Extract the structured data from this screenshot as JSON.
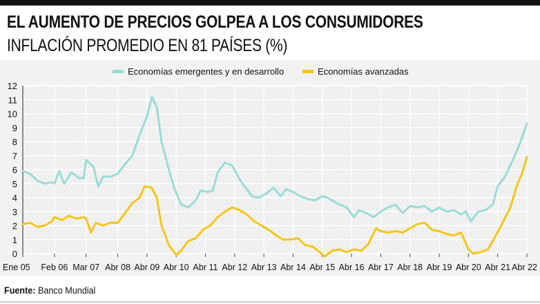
{
  "header": {
    "title": "EL AUMENTO DE PRECIOS GOLPEA A LOS CONSUMIDORES",
    "subtitle": "INFLACIÓN PROMEDIO EN 81 PAÍSES (%)"
  },
  "footer": {
    "source_label": "Fuente:",
    "source_text": "Banco Mundial"
  },
  "chart_data": {
    "type": "line",
    "title": "EL AUMENTO DE PRECIOS GOLPEA A LOS CONSUMIDORES",
    "subtitle": "INFLACIÓN PROMEDIO EN 81 PAÍSES (%)",
    "xlabel": "",
    "ylabel": "",
    "x_start": "2005-01",
    "x_end": "2022-04",
    "x_ticks": [
      {
        "label": "Ene 05",
        "date": "2005-01"
      },
      {
        "label": "Feb 06",
        "date": "2006-02"
      },
      {
        "label": "Mar 07",
        "date": "2007-03"
      },
      {
        "label": "Abr 08",
        "date": "2008-04"
      },
      {
        "label": "Abr 09",
        "date": "2009-04"
      },
      {
        "label": "Abr 10",
        "date": "2010-04"
      },
      {
        "label": "Abr 11",
        "date": "2011-04"
      },
      {
        "label": "Abr 12",
        "date": "2012-04"
      },
      {
        "label": "Abr 13",
        "date": "2013-04"
      },
      {
        "label": "Abr 14",
        "date": "2014-04"
      },
      {
        "label": "Abr 15",
        "date": "2015-04"
      },
      {
        "label": "Abr 16",
        "date": "2016-04"
      },
      {
        "label": "Abr 17",
        "date": "2017-04"
      },
      {
        "label": "Abr 18",
        "date": "2018-04"
      },
      {
        "label": "Abr 19",
        "date": "2019-04"
      },
      {
        "label": "Abr 20",
        "date": "2020-04"
      },
      {
        "label": "Abr 21",
        "date": "2021-04"
      },
      {
        "label": "Abr 22",
        "date": "2022-04"
      }
    ],
    "yticks": [
      0,
      1,
      2,
      3,
      4,
      5,
      6,
      7,
      8,
      9,
      10,
      11,
      12
    ],
    "ylim": [
      0,
      12
    ],
    "grid": true,
    "legend_position": "top-center",
    "series": [
      {
        "name": "Economías emergentes y en desarrollo",
        "color": "#9adbd8",
        "points": [
          [
            "2005-01",
            5.9
          ],
          [
            "2005-04",
            5.7
          ],
          [
            "2005-07",
            5.2
          ],
          [
            "2005-10",
            5.0
          ],
          [
            "2006-01",
            5.1
          ],
          [
            "2006-02",
            5.0
          ],
          [
            "2006-04",
            5.9
          ],
          [
            "2006-06",
            5.0
          ],
          [
            "2006-09",
            5.8
          ],
          [
            "2006-12",
            5.4
          ],
          [
            "2007-02",
            5.4
          ],
          [
            "2007-03",
            6.7
          ],
          [
            "2007-06",
            6.2
          ],
          [
            "2007-08",
            4.8
          ],
          [
            "2007-10",
            5.5
          ],
          [
            "2008-01",
            5.5
          ],
          [
            "2008-04",
            5.7
          ],
          [
            "2008-07",
            6.4
          ],
          [
            "2008-10",
            7.0
          ],
          [
            "2009-01",
            8.5
          ],
          [
            "2009-04",
            9.8
          ],
          [
            "2009-06",
            11.2
          ],
          [
            "2009-08",
            10.5
          ],
          [
            "2009-10",
            8.0
          ],
          [
            "2010-01",
            6.0
          ],
          [
            "2010-03",
            4.8
          ],
          [
            "2010-06",
            3.5
          ],
          [
            "2010-09",
            3.3
          ],
          [
            "2010-12",
            3.8
          ],
          [
            "2011-02",
            4.5
          ],
          [
            "2011-05",
            4.4
          ],
          [
            "2011-07",
            4.5
          ],
          [
            "2011-09",
            5.8
          ],
          [
            "2011-12",
            6.5
          ],
          [
            "2012-03",
            6.3
          ],
          [
            "2012-06",
            5.3
          ],
          [
            "2012-09",
            4.6
          ],
          [
            "2012-11",
            4.1
          ],
          [
            "2013-02",
            4.0
          ],
          [
            "2013-05",
            4.3
          ],
          [
            "2013-08",
            4.7
          ],
          [
            "2013-11",
            4.1
          ],
          [
            "2014-01",
            4.6
          ],
          [
            "2014-04",
            4.4
          ],
          [
            "2014-07",
            4.1
          ],
          [
            "2014-10",
            3.9
          ],
          [
            "2015-01",
            3.8
          ],
          [
            "2015-04",
            4.1
          ],
          [
            "2015-06",
            4.0
          ],
          [
            "2015-08",
            3.8
          ],
          [
            "2015-11",
            3.5
          ],
          [
            "2016-02",
            3.3
          ],
          [
            "2016-05",
            2.6
          ],
          [
            "2016-07",
            3.1
          ],
          [
            "2016-10",
            2.9
          ],
          [
            "2017-01",
            2.6
          ],
          [
            "2017-04",
            3.0
          ],
          [
            "2017-07",
            3.3
          ],
          [
            "2017-10",
            3.5
          ],
          [
            "2018-01",
            2.9
          ],
          [
            "2018-04",
            3.4
          ],
          [
            "2018-07",
            3.3
          ],
          [
            "2018-10",
            3.4
          ],
          [
            "2019-01",
            3.0
          ],
          [
            "2019-04",
            3.3
          ],
          [
            "2019-07",
            3.0
          ],
          [
            "2019-10",
            3.1
          ],
          [
            "2020-01",
            2.8
          ],
          [
            "2020-03",
            3.0
          ],
          [
            "2020-05",
            2.3
          ],
          [
            "2020-08",
            3.0
          ],
          [
            "2020-11",
            3.1
          ],
          [
            "2021-02",
            3.5
          ],
          [
            "2021-04",
            4.8
          ],
          [
            "2021-07",
            5.5
          ],
          [
            "2021-10",
            6.6
          ],
          [
            "2022-01",
            7.8
          ],
          [
            "2022-04",
            9.3
          ]
        ]
      },
      {
        "name": "Economías avanzadas",
        "color": "#f5c518",
        "points": [
          [
            "2005-01",
            2.1
          ],
          [
            "2005-04",
            2.2
          ],
          [
            "2005-07",
            1.9
          ],
          [
            "2005-10",
            2.0
          ],
          [
            "2006-01",
            2.3
          ],
          [
            "2006-02",
            2.6
          ],
          [
            "2006-05",
            2.4
          ],
          [
            "2006-08",
            2.7
          ],
          [
            "2006-11",
            2.5
          ],
          [
            "2007-02",
            2.6
          ],
          [
            "2007-03",
            2.5
          ],
          [
            "2007-05",
            1.5
          ],
          [
            "2007-07",
            2.2
          ],
          [
            "2007-10",
            2.0
          ],
          [
            "2008-01",
            2.2
          ],
          [
            "2008-04",
            2.2
          ],
          [
            "2008-07",
            2.9
          ],
          [
            "2008-10",
            3.6
          ],
          [
            "2009-01",
            4.0
          ],
          [
            "2009-03",
            4.8
          ],
          [
            "2009-06",
            4.7
          ],
          [
            "2009-08",
            4.0
          ],
          [
            "2009-10",
            2.0
          ],
          [
            "2010-01",
            0.6
          ],
          [
            "2010-04",
            -0.1
          ],
          [
            "2010-06",
            0.2
          ],
          [
            "2010-09",
            0.9
          ],
          [
            "2010-12",
            1.1
          ],
          [
            "2011-03",
            1.7
          ],
          [
            "2011-06",
            2.0
          ],
          [
            "2011-09",
            2.6
          ],
          [
            "2011-12",
            3.0
          ],
          [
            "2012-03",
            3.3
          ],
          [
            "2012-06",
            3.1
          ],
          [
            "2012-09",
            2.8
          ],
          [
            "2012-12",
            2.3
          ],
          [
            "2013-03",
            2.0
          ],
          [
            "2013-06",
            1.7
          ],
          [
            "2013-09",
            1.3
          ],
          [
            "2013-12",
            1.0
          ],
          [
            "2014-03",
            1.0
          ],
          [
            "2014-06",
            1.1
          ],
          [
            "2014-09",
            0.6
          ],
          [
            "2014-12",
            0.5
          ],
          [
            "2015-03",
            0.1
          ],
          [
            "2015-05",
            -0.2
          ],
          [
            "2015-08",
            0.2
          ],
          [
            "2015-11",
            0.3
          ],
          [
            "2016-02",
            0.1
          ],
          [
            "2016-05",
            0.3
          ],
          [
            "2016-08",
            0.2
          ],
          [
            "2016-11",
            0.7
          ],
          [
            "2017-02",
            1.8
          ],
          [
            "2017-04",
            1.6
          ],
          [
            "2017-07",
            1.5
          ],
          [
            "2017-10",
            1.6
          ],
          [
            "2018-01",
            1.5
          ],
          [
            "2018-04",
            1.8
          ],
          [
            "2018-07",
            2.1
          ],
          [
            "2018-10",
            2.2
          ],
          [
            "2019-01",
            1.7
          ],
          [
            "2019-04",
            1.6
          ],
          [
            "2019-07",
            1.4
          ],
          [
            "2019-10",
            1.3
          ],
          [
            "2020-01",
            1.5
          ],
          [
            "2020-04",
            0.3
          ],
          [
            "2020-06",
            0.0
          ],
          [
            "2020-09",
            0.1
          ],
          [
            "2020-12",
            0.3
          ],
          [
            "2021-03",
            1.2
          ],
          [
            "2021-06",
            2.2
          ],
          [
            "2021-09",
            3.2
          ],
          [
            "2021-12",
            4.9
          ],
          [
            "2022-02",
            5.7
          ],
          [
            "2022-04",
            6.9
          ]
        ]
      }
    ]
  }
}
